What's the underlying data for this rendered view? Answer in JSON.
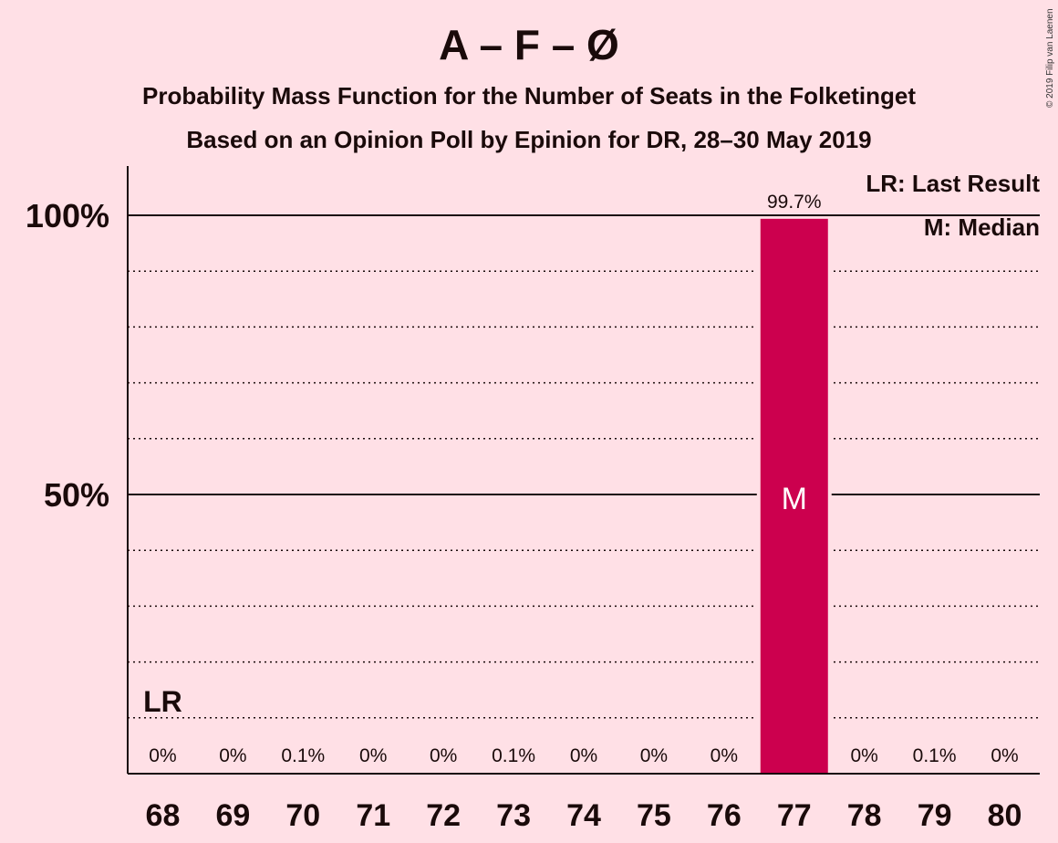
{
  "chart_data": {
    "type": "bar",
    "title": "A – F – Ø",
    "subtitle": "Probability Mass Function for the Number of Seats in the Folketinget",
    "subtitle2": "Based on an Opinion Poll by Epinion for DR, 28–30 May 2019",
    "copyright": "© 2019 Filip van Laenen",
    "categories": [
      "68",
      "69",
      "70",
      "71",
      "72",
      "73",
      "74",
      "75",
      "76",
      "77",
      "78",
      "79",
      "80"
    ],
    "values": [
      0,
      0,
      0.1,
      0,
      0,
      0.1,
      0,
      0,
      0,
      99.7,
      0,
      0.1,
      0
    ],
    "value_labels": [
      "0%",
      "0%",
      "0.1%",
      "0%",
      "0%",
      "0.1%",
      "0%",
      "0%",
      "0%",
      "99.7%",
      "0%",
      "0.1%",
      "0%"
    ],
    "y_tick_labels": [
      {
        "value": 50,
        "label": "50%"
      },
      {
        "value": 100,
        "label": "100%"
      }
    ],
    "ylim": [
      0,
      100
    ],
    "median_category": "77",
    "median_marker": "M",
    "last_result_category": "68",
    "last_result_marker": "LR",
    "legend": {
      "last_result": "LR: Last Result",
      "median": "M: Median"
    },
    "colors": {
      "bar": "#cc004e",
      "background": "#ffe0e6",
      "text": "#1a0a0a"
    }
  }
}
